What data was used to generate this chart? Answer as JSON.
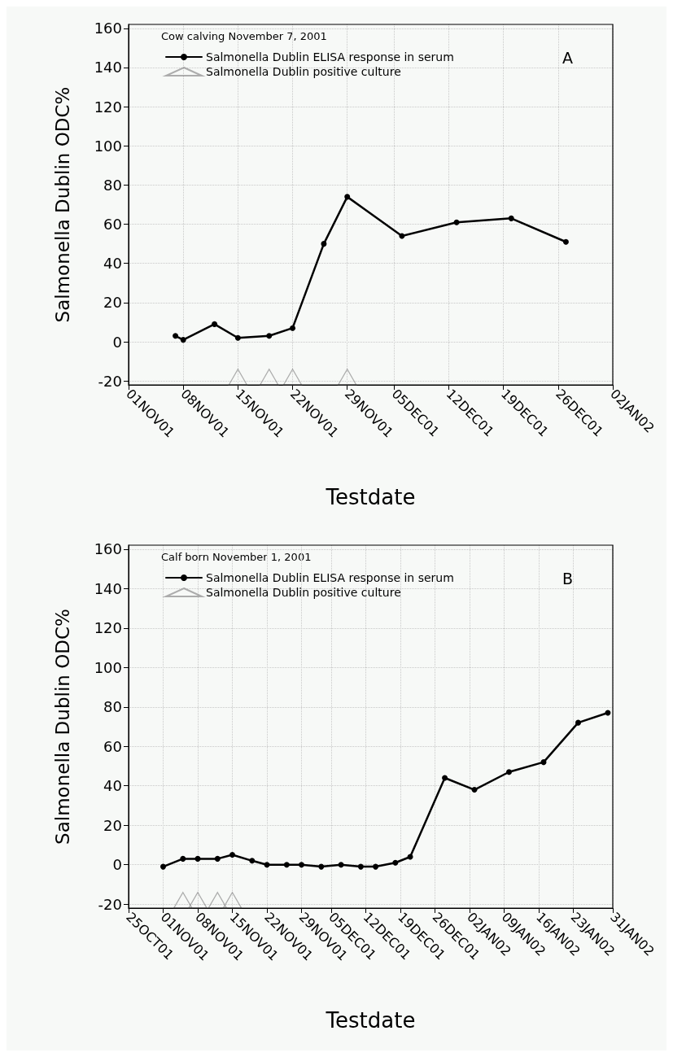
{
  "chart_data": [
    {
      "type": "line",
      "title": "A",
      "legend_title": "Cow calving November 7, 2001",
      "xlabel": "Testdate",
      "ylabel": "Salmonella Dublin ODC%",
      "legend": "top left",
      "grid": true,
      "xlim": [
        "2001-11-01",
        "2002-01-02"
      ],
      "ylim": [
        -22,
        162
      ],
      "xticks": [
        {
          "value": "2001-11-01",
          "label": "01NOV01"
        },
        {
          "value": "2001-11-08",
          "label": "08NOV01"
        },
        {
          "value": "2001-11-15",
          "label": "15NOV01"
        },
        {
          "value": "2001-11-22",
          "label": "22NOV01"
        },
        {
          "value": "2001-11-29",
          "label": "29NOV01"
        },
        {
          "value": "2001-12-05",
          "label": "05DEC01"
        },
        {
          "value": "2001-12-12",
          "label": "12DEC01"
        },
        {
          "value": "2001-12-19",
          "label": "19DEC01"
        },
        {
          "value": "2001-12-26",
          "label": "26DEC01"
        },
        {
          "value": "2002-01-02",
          "label": "02JAN02"
        }
      ],
      "yticks": [
        -20,
        0,
        20,
        40,
        60,
        80,
        100,
        120,
        140,
        160
      ],
      "series": [
        {
          "name": "Salmonella Dublin ELISA response in serum",
          "type": "line",
          "marker": "circle",
          "color": "#000000",
          "x": [
            "2001-11-07",
            "2001-11-08",
            "2001-11-12",
            "2001-11-15",
            "2001-11-19",
            "2001-11-22",
            "2001-11-26",
            "2001-11-29",
            "2001-12-06",
            "2001-12-13",
            "2001-12-20",
            "2001-12-27"
          ],
          "values": [
            3,
            1,
            9,
            2,
            3,
            7,
            50,
            74,
            54,
            61,
            63,
            51
          ]
        },
        {
          "name": "Salmonella Dublin positive culture",
          "type": "scatter",
          "marker": "triangle",
          "color": "#999999",
          "x": [
            "2001-11-15",
            "2001-11-19",
            "2001-11-22",
            "2001-11-29"
          ],
          "values": [
            -18,
            -18,
            -18,
            -18
          ]
        }
      ]
    },
    {
      "type": "line",
      "title": "B",
      "legend_title": "Calf born November 1, 2001",
      "xlabel": "Testdate",
      "ylabel": "Salmonella Dublin ODC%",
      "legend": "top left",
      "grid": true,
      "xlim": [
        "2001-10-25",
        "2002-01-31"
      ],
      "ylim": [
        -22,
        162
      ],
      "xticks": [
        {
          "value": "2001-10-25",
          "label": "25OCT01"
        },
        {
          "value": "2001-11-01",
          "label": "01NOV01"
        },
        {
          "value": "2001-11-08",
          "label": "08NOV01"
        },
        {
          "value": "2001-11-15",
          "label": "15NOV01"
        },
        {
          "value": "2001-11-22",
          "label": "22NOV01"
        },
        {
          "value": "2001-11-29",
          "label": "29NOV01"
        },
        {
          "value": "2001-12-05",
          "label": "05DEC01"
        },
        {
          "value": "2001-12-12",
          "label": "12DEC01"
        },
        {
          "value": "2001-12-19",
          "label": "19DEC01"
        },
        {
          "value": "2001-12-26",
          "label": "26DEC01"
        },
        {
          "value": "2002-01-02",
          "label": "02JAN02"
        },
        {
          "value": "2002-01-09",
          "label": "09JAN02"
        },
        {
          "value": "2002-01-16",
          "label": "16JAN02"
        },
        {
          "value": "2002-01-23",
          "label": "23JAN02"
        },
        {
          "value": "2002-01-31",
          "label": "31JAN02"
        }
      ],
      "yticks": [
        -20,
        0,
        20,
        40,
        60,
        80,
        100,
        120,
        140,
        160
      ],
      "series": [
        {
          "name": "Salmonella Dublin ELISA response in serum",
          "type": "line",
          "marker": "circle",
          "color": "#000000",
          "x": [
            "2001-11-01",
            "2001-11-05",
            "2001-11-08",
            "2001-11-12",
            "2001-11-15",
            "2001-11-19",
            "2001-11-22",
            "2001-11-26",
            "2001-11-29",
            "2001-12-03",
            "2001-12-07",
            "2001-12-11",
            "2001-12-14",
            "2001-12-18",
            "2001-12-21",
            "2001-12-28",
            "2002-01-03",
            "2002-01-10",
            "2002-01-17",
            "2002-01-24",
            "2002-01-30"
          ],
          "values": [
            -1,
            3,
            3,
            3,
            5,
            2,
            0,
            0,
            0,
            -1,
            0,
            -1,
            -1,
            1,
            4,
            44,
            38,
            47,
            52,
            72,
            77
          ]
        },
        {
          "name": "Salmonella Dublin positive culture",
          "type": "scatter",
          "marker": "triangle",
          "color": "#999999",
          "x": [
            "2001-11-05",
            "2001-11-08",
            "2001-11-12",
            "2001-11-15"
          ],
          "values": [
            -18,
            -18,
            -18,
            -18
          ]
        }
      ]
    }
  ]
}
